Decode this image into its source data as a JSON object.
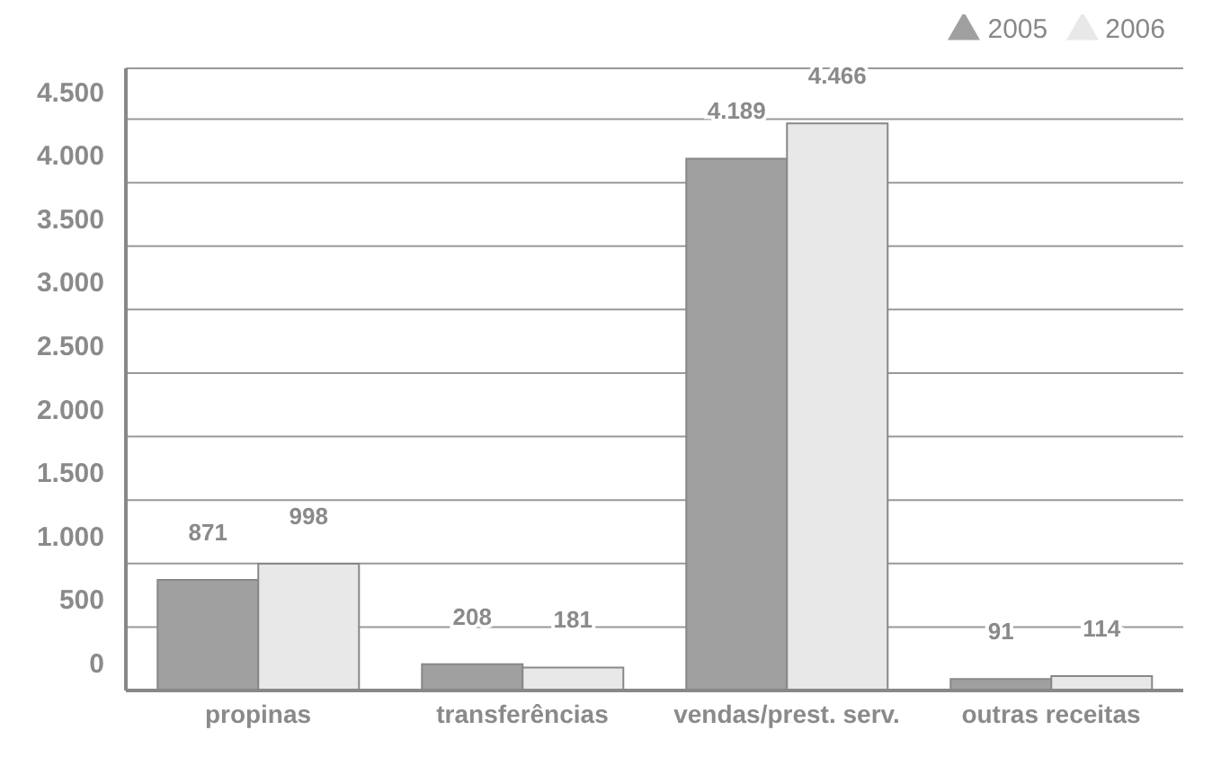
{
  "chart_data": {
    "type": "bar",
    "categories": [
      "propinas",
      "transferências",
      "vendas/prest. serv.",
      "outras receitas"
    ],
    "series": [
      {
        "name": "2005",
        "color": "#a0a0a0",
        "values": [
          871,
          208,
          4189,
          91
        ],
        "value_labels": [
          "871",
          "208",
          "4.189",
          "91"
        ]
      },
      {
        "name": "2006",
        "color": "#e8e8e8",
        "values": [
          998,
          181,
          4466,
          114
        ],
        "value_labels": [
          "998",
          "181",
          "4.466",
          "114"
        ]
      }
    ],
    "ylim": [
      0,
      4900
    ],
    "yticks": [
      0,
      {
        "value": 500,
        "label": "500"
      },
      {
        "value": 1000,
        "label": "1.000"
      },
      {
        "value": 1500,
        "label": "1.500"
      },
      {
        "value": 2000,
        "label": "2.000"
      },
      {
        "value": 2500,
        "label": "2.500"
      },
      {
        "value": 3000,
        "label": "3.000"
      },
      {
        "value": 3500,
        "label": "3.500"
      },
      {
        "value": 4000,
        "label": "4.000"
      },
      {
        "value": 4500,
        "label": "4.500"
      }
    ],
    "grid": "y",
    "legend": "top right",
    "marker": "triangle"
  }
}
